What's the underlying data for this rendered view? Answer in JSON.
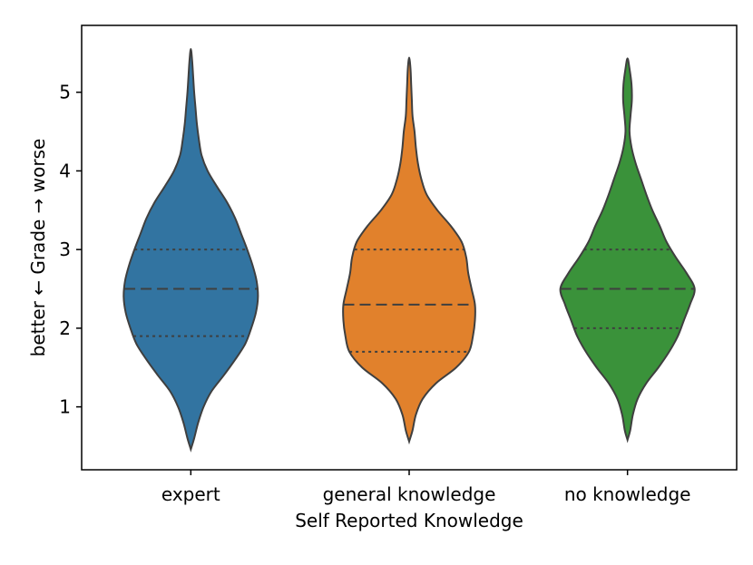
{
  "chart_data": {
    "type": "violin",
    "title": "",
    "xlabel": "Self Reported Knowledge",
    "ylabel": "better ← Grade → worse",
    "categories": [
      "expert",
      "general knowledge",
      "no knowledge"
    ],
    "ylim": [
      0.2,
      5.85
    ],
    "yticks": [
      1,
      2,
      3,
      4,
      5
    ],
    "grid": false,
    "colors": [
      "#3274a1",
      "#e1812c",
      "#3a923a"
    ],
    "violins": [
      {
        "category": "expert",
        "quartiles": {
          "q1": 1.9,
          "median": 2.5,
          "q3": 3.0
        },
        "min": 0.46,
        "max": 5.55,
        "density": [
          [
            0.46,
            0.0
          ],
          [
            0.6,
            0.05
          ],
          [
            0.8,
            0.11
          ],
          [
            1.0,
            0.19
          ],
          [
            1.2,
            0.31
          ],
          [
            1.4,
            0.49
          ],
          [
            1.6,
            0.66
          ],
          [
            1.8,
            0.81
          ],
          [
            2.0,
            0.9
          ],
          [
            2.2,
            0.97
          ],
          [
            2.4,
            1.0
          ],
          [
            2.6,
            0.98
          ],
          [
            2.8,
            0.92
          ],
          [
            3.0,
            0.84
          ],
          [
            3.2,
            0.75
          ],
          [
            3.4,
            0.66
          ],
          [
            3.6,
            0.54
          ],
          [
            3.8,
            0.39
          ],
          [
            4.0,
            0.25
          ],
          [
            4.2,
            0.16
          ],
          [
            4.4,
            0.12
          ],
          [
            4.6,
            0.09
          ],
          [
            4.8,
            0.07
          ],
          [
            5.0,
            0.05
          ],
          [
            5.2,
            0.035
          ],
          [
            5.4,
            0.02
          ],
          [
            5.55,
            0.0
          ]
        ]
      },
      {
        "category": "general knowledge",
        "quartiles": {
          "q1": 1.7,
          "median": 2.3,
          "q3": 3.0
        },
        "min": 0.56,
        "max": 5.44,
        "density": [
          [
            0.56,
            0.0
          ],
          [
            0.7,
            0.05
          ],
          [
            0.9,
            0.1
          ],
          [
            1.1,
            0.2
          ],
          [
            1.3,
            0.4
          ],
          [
            1.5,
            0.7
          ],
          [
            1.7,
            0.89
          ],
          [
            1.9,
            0.95
          ],
          [
            2.1,
            0.98
          ],
          [
            2.3,
            0.98
          ],
          [
            2.5,
            0.93
          ],
          [
            2.7,
            0.88
          ],
          [
            2.9,
            0.85
          ],
          [
            3.1,
            0.78
          ],
          [
            3.3,
            0.62
          ],
          [
            3.5,
            0.42
          ],
          [
            3.7,
            0.26
          ],
          [
            3.9,
            0.18
          ],
          [
            4.1,
            0.13
          ],
          [
            4.3,
            0.1
          ],
          [
            4.5,
            0.08
          ],
          [
            4.7,
            0.05
          ],
          [
            4.9,
            0.04
          ],
          [
            5.1,
            0.03
          ],
          [
            5.3,
            0.02
          ],
          [
            5.44,
            0.0
          ]
        ]
      },
      {
        "category": "no knowledge",
        "quartiles": {
          "q1": 2.0,
          "median": 2.5,
          "q3": 3.0
        },
        "min": 0.58,
        "max": 5.43,
        "density": [
          [
            0.58,
            0.0
          ],
          [
            0.7,
            0.04
          ],
          [
            0.9,
            0.08
          ],
          [
            1.1,
            0.15
          ],
          [
            1.3,
            0.28
          ],
          [
            1.5,
            0.46
          ],
          [
            1.7,
            0.62
          ],
          [
            1.9,
            0.75
          ],
          [
            2.1,
            0.84
          ],
          [
            2.3,
            0.93
          ],
          [
            2.5,
            1.0
          ],
          [
            2.7,
            0.88
          ],
          [
            2.9,
            0.72
          ],
          [
            3.1,
            0.58
          ],
          [
            3.3,
            0.48
          ],
          [
            3.5,
            0.37
          ],
          [
            3.7,
            0.28
          ],
          [
            3.9,
            0.2
          ],
          [
            4.1,
            0.12
          ],
          [
            4.3,
            0.06
          ],
          [
            4.5,
            0.03
          ],
          [
            4.7,
            0.045
          ],
          [
            4.9,
            0.065
          ],
          [
            5.1,
            0.06
          ],
          [
            5.3,
            0.03
          ],
          [
            5.43,
            0.0
          ]
        ]
      }
    ]
  }
}
